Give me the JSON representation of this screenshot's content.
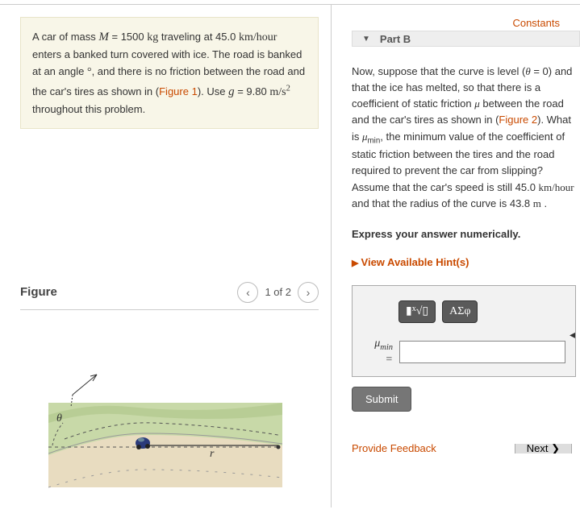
{
  "problem": {
    "text_html": "A car of mass <span class='var'>M</span> = 1500 <span class='rm'>kg</span> traveling at 45.0 <span class='rm'>km/hour</span> enters a banked turn covered with ice. The road is banked at an angle <span class='rm'>°</span>, and there is no friction between the road and the car's tires as shown in (<span class='link'>Figure 1</span>). Use <span class='var'>g</span> = 9.80 <span class='rm'>m/s<sup>2</sup></span> throughout this problem."
  },
  "figure": {
    "title": "Figure",
    "nav_text": "1 of 2",
    "theta_label": "θ",
    "r_label": "r"
  },
  "constants_label": "Constants",
  "part": {
    "header": "Part B",
    "body_html": "Now, suppose that the curve is level (<span class='ital'>θ</span> = 0) and that the ice has melted, so that there is a coefficient of static friction <span class='ital'>μ</span> between the road and the car's tires as shown in (<span class='link'>Figure 2</span>). What is <span class='ital'>μ</span><sub>min</sub>, the minimum value of the coefficient of static friction between the tires and the road required to prevent the car from slipping? Assume that the car's speed is still 45.0 <span class='rm'>km/hour</span> and that the radius of the curve is 43.8 <span class='rm'>m</span> .",
    "instruction": "Express your answer numerically.",
    "hints_label": "View Available Hint(s)",
    "tool1_html": "▮ <span style='font-size:10px;position:relative;top:-3px'>x</span>√▯",
    "tool2_html": "ΑΣφ",
    "answer_label_html": "<span class='ital'>μ</span><sub>min</sub><br>=",
    "answer_value": "",
    "submit_label": "Submit"
  },
  "bottom": {
    "feedback_label": "Provide Feedback",
    "next_label": "Next ❯"
  },
  "colors": {
    "accent": "#c94a00",
    "problem_bg": "#f8f6e8",
    "figure_grass": "#c8d9a8",
    "figure_road": "#e8dcc0",
    "figure_car": "#2a3a7a"
  }
}
